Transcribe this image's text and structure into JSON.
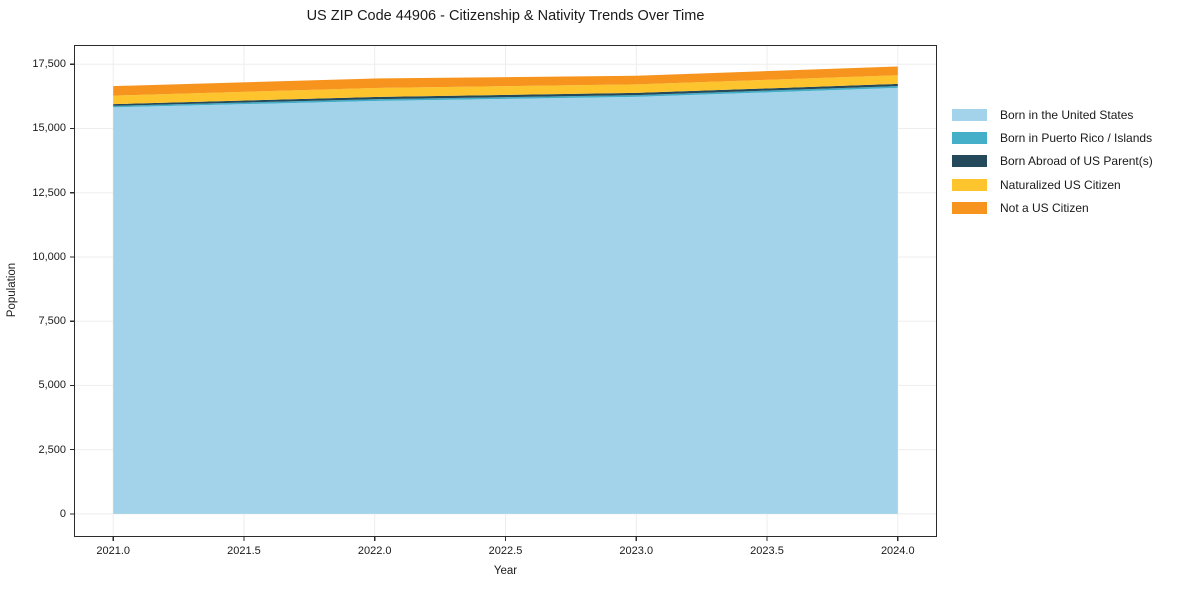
{
  "title": "US ZIP Code 44906 - Citizenship & Nativity Trends Over Time",
  "chart_data": {
    "type": "area",
    "stacked": true,
    "x": [
      2021,
      2022,
      2023,
      2024
    ],
    "series": [
      {
        "name": "Born in the United States",
        "color": "#a3d3ea",
        "values": [
          15820,
          16070,
          16230,
          16580
        ]
      },
      {
        "name": "Born in Puerto Rico / Islands",
        "color": "#45aec8",
        "values": [
          60,
          70,
          70,
          70
        ]
      },
      {
        "name": "Born Abroad of US Parent(s)",
        "color": "#24495a",
        "values": [
          70,
          85,
          85,
          85
        ]
      },
      {
        "name": "Naturalized US Citizen",
        "color": "#fdc42d",
        "values": [
          330,
          350,
          330,
          340
        ]
      },
      {
        "name": "Not a US Citizen",
        "color": "#f7941e",
        "values": [
          370,
          370,
          340,
          340
        ]
      }
    ],
    "title": "US ZIP Code 44906 - Citizenship & Nativity Trends Over Time",
    "xlabel": "Year",
    "ylabel": "Population",
    "xlim": [
      2020.85,
      2024.15
    ],
    "ylim": [
      -900,
      18250
    ],
    "xticks": {
      "values": [
        2021,
        2021.5,
        2022,
        2022.5,
        2023,
        2023.5,
        2024
      ],
      "labels": [
        "2021.0",
        "2021.5",
        "2022.0",
        "2022.5",
        "2023.0",
        "2023.5",
        "2024.0"
      ]
    },
    "yticks": {
      "values": [
        0,
        2500,
        5000,
        7500,
        10000,
        12500,
        15000,
        17500
      ],
      "labels": [
        "0",
        "2,500",
        "5,000",
        "7,500",
        "10,000",
        "12,500",
        "15,000",
        "17,500"
      ]
    },
    "grid": true,
    "legend_position": "right-outside"
  }
}
